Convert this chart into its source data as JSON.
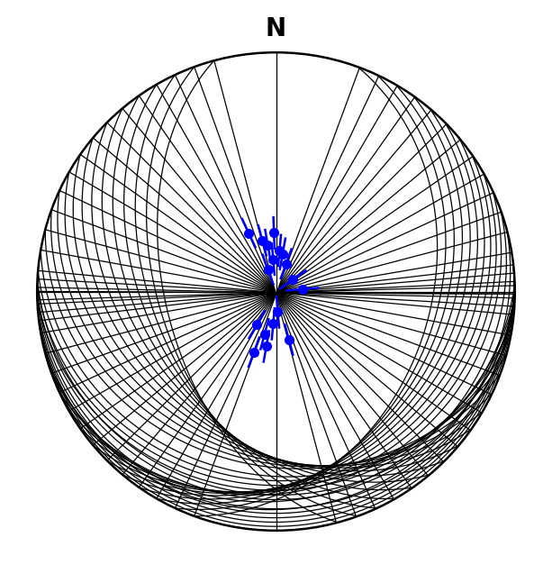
{
  "title": "N",
  "bg_color": "#ffffff",
  "circle_color": "#000000",
  "lineation_color": "#0000ff",
  "great_circle_color": "#000000",
  "lineation_data": [
    {
      "trend": 340,
      "plunge": 82
    },
    {
      "trend": 355,
      "plunge": 79
    },
    {
      "trend": 10,
      "plunge": 77
    },
    {
      "trend": 5,
      "plunge": 76
    },
    {
      "trend": 350,
      "plunge": 74
    },
    {
      "trend": 345,
      "plunge": 72
    },
    {
      "trend": 358,
      "plunge": 70
    },
    {
      "trend": 20,
      "plunge": 80
    },
    {
      "trend": 335,
      "plunge": 68
    },
    {
      "trend": 55,
      "plunge": 83
    },
    {
      "trend": 85,
      "plunge": 81
    },
    {
      "trend": 175,
      "plunge": 83
    },
    {
      "trend": 185,
      "plunge": 79
    },
    {
      "trend": 195,
      "plunge": 75
    },
    {
      "trend": 190,
      "plunge": 71
    },
    {
      "trend": 200,
      "plunge": 68
    },
    {
      "trend": 165,
      "plunge": 73
    },
    {
      "trend": 210,
      "plunge": 77
    }
  ],
  "foliation_data": [
    {
      "strike": 270,
      "dip": 10
    },
    {
      "strike": 270,
      "dip": 14
    },
    {
      "strike": 267,
      "dip": 8
    },
    {
      "strike": 273,
      "dip": 16
    },
    {
      "strike": 265,
      "dip": 6
    },
    {
      "strike": 263,
      "dip": 4
    },
    {
      "strike": 268,
      "dip": 18
    },
    {
      "strike": 271,
      "dip": 20
    },
    {
      "strike": 275,
      "dip": 22
    },
    {
      "strike": 260,
      "dip": 2
    },
    {
      "strike": 280,
      "dip": 24
    },
    {
      "strike": 255,
      "dip": 10
    },
    {
      "strike": 250,
      "dip": 14
    },
    {
      "strike": 285,
      "dip": 28
    },
    {
      "strike": 290,
      "dip": 30
    },
    {
      "strike": 245,
      "dip": 18
    },
    {
      "strike": 240,
      "dip": 20
    },
    {
      "strike": 295,
      "dip": 32
    },
    {
      "strike": 235,
      "dip": 22
    },
    {
      "strike": 300,
      "dip": 34
    },
    {
      "strike": 230,
      "dip": 24
    },
    {
      "strike": 305,
      "dip": 36
    },
    {
      "strike": 225,
      "dip": 26
    },
    {
      "strike": 310,
      "dip": 38
    },
    {
      "strike": 220,
      "dip": 28
    },
    {
      "strike": 315,
      "dip": 40
    },
    {
      "strike": 320,
      "dip": 42
    },
    {
      "strike": 325,
      "dip": 44
    },
    {
      "strike": 215,
      "dip": 30
    },
    {
      "strike": 210,
      "dip": 32
    },
    {
      "strike": 330,
      "dip": 46
    },
    {
      "strike": 205,
      "dip": 34
    },
    {
      "strike": 335,
      "dip": 48
    },
    {
      "strike": 340,
      "dip": 50
    },
    {
      "strike": 200,
      "dip": 36
    },
    {
      "strike": 345,
      "dip": 52
    }
  ],
  "figsize": [
    6.13,
    6.47
  ],
  "dpi": 100
}
